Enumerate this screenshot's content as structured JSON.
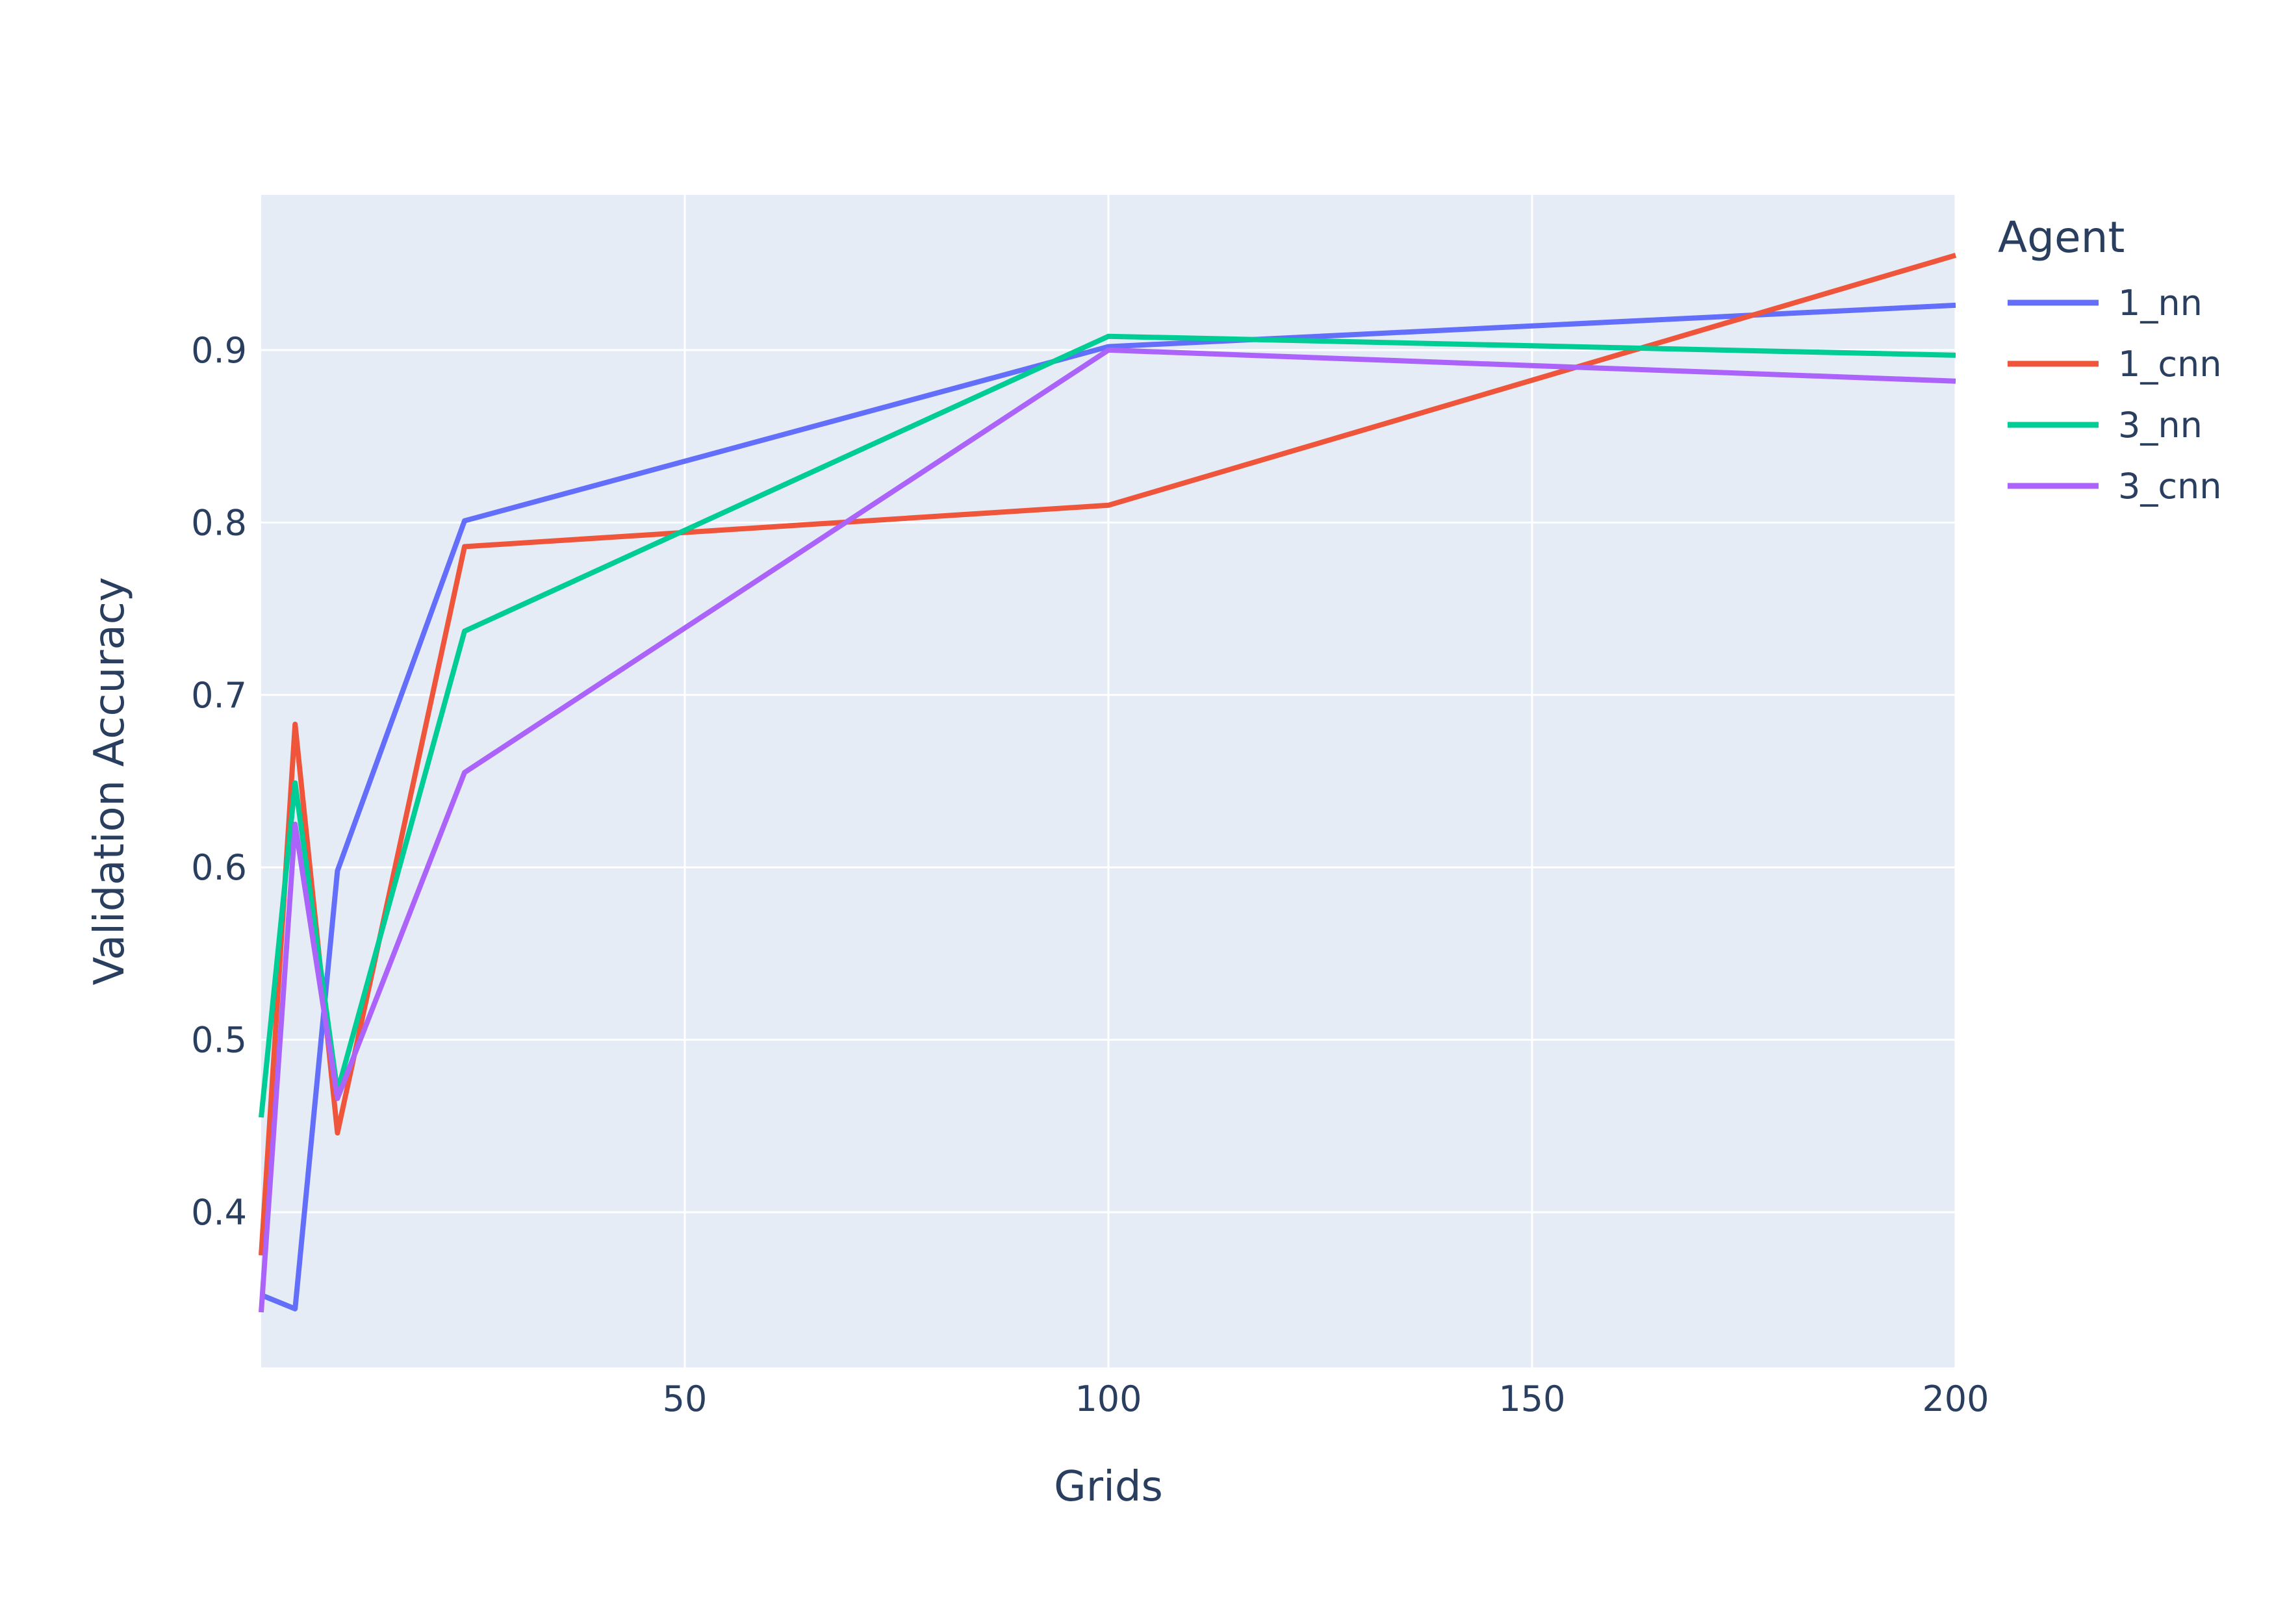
{
  "chart_data": {
    "type": "line",
    "xlabel": "Grids",
    "ylabel": "Validation Accuracy",
    "xlim": [
      0,
      200
    ],
    "ylim": [
      0.31,
      0.99
    ],
    "xticks": [
      50,
      100,
      150,
      200
    ],
    "yticks": [
      0.4,
      0.5,
      0.6,
      0.7,
      0.8,
      0.9
    ],
    "grid": true,
    "legend": {
      "title": "Agent",
      "position": "right"
    },
    "x": [
      0,
      4,
      9,
      24,
      100,
      200
    ],
    "series": [
      {
        "name": "1_nn",
        "color": "#636efa",
        "values": [
          0.352,
          0.344,
          0.598,
          0.801,
          0.902,
          0.926
        ]
      },
      {
        "name": "1_cnn",
        "color": "#ef553b",
        "values": [
          0.375,
          0.683,
          0.446,
          0.786,
          0.81,
          0.955
        ]
      },
      {
        "name": "3_nn",
        "color": "#00cc96",
        "values": [
          0.455,
          0.649,
          0.47,
          0.737,
          0.908,
          0.897
        ]
      },
      {
        "name": "3_cnn",
        "color": "#ab63fa",
        "values": [
          0.342,
          0.625,
          0.466,
          0.655,
          0.9,
          0.882
        ]
      }
    ]
  }
}
